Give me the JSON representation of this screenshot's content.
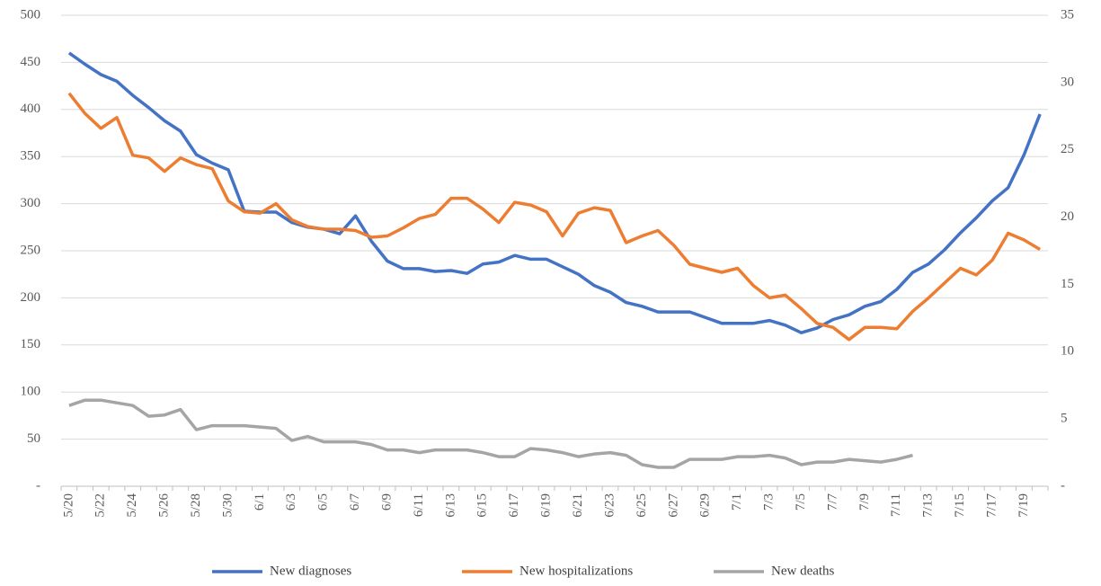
{
  "chart_data": {
    "type": "line",
    "categories": [
      "5/20",
      null,
      "5/22",
      null,
      "5/24",
      null,
      "5/26",
      null,
      "5/28",
      null,
      "5/30",
      null,
      "6/1",
      null,
      "6/3",
      null,
      "6/5",
      null,
      "6/7",
      null,
      "6/9",
      null,
      "6/11",
      null,
      "6/13",
      null,
      "6/15",
      null,
      "6/17",
      null,
      "6/19",
      null,
      "6/21",
      null,
      "6/23",
      null,
      "6/25",
      null,
      "6/27",
      null,
      "6/29",
      null,
      "7/1",
      null,
      "7/3",
      null,
      "7/5",
      null,
      "7/7",
      null,
      "7/9",
      null,
      "7/11",
      null,
      "7/13",
      null,
      "7/15",
      null,
      "7/17",
      null,
      "7/19",
      null
    ],
    "series": [
      {
        "name": "New diagnoses",
        "color": "#4472c4",
        "values": [
          460,
          448,
          437,
          430,
          415,
          402,
          388,
          377,
          352,
          343,
          336,
          292,
          291,
          291,
          280,
          275,
          273,
          268,
          287,
          260,
          239,
          231,
          231,
          228,
          229,
          226,
          236,
          238,
          245,
          241,
          241,
          233,
          225,
          213,
          206,
          195,
          191,
          185,
          185,
          185,
          179,
          173,
          173,
          173,
          176,
          171,
          163,
          168,
          177,
          182,
          191,
          196,
          209,
          227,
          236,
          251,
          269,
          285,
          303,
          317,
          352,
          395
        ]
      },
      {
        "name": "New hospitalizations",
        "color": "#ed7d31",
        "axis": "y2",
        "values": [
          29.2,
          27.7,
          26.6,
          27.4,
          24.6,
          24.4,
          23.4,
          24.4,
          23.9,
          23.6,
          21.2,
          20.4,
          20.3,
          21.0,
          19.8,
          19.3,
          19.1,
          19.1,
          19.0,
          18.5,
          18.6,
          19.2,
          19.9,
          20.2,
          21.4,
          21.4,
          20.6,
          19.6,
          21.1,
          20.9,
          20.4,
          18.6,
          20.3,
          20.7,
          20.5,
          18.1,
          18.6,
          19.0,
          17.9,
          16.5,
          16.2,
          15.9,
          16.2,
          14.9,
          14.0,
          14.2,
          13.2,
          12.1,
          11.8,
          10.9,
          11.8,
          11.8,
          11.7,
          13.0,
          14.0,
          15.1,
          16.2,
          15.7,
          16.8,
          18.8,
          18.3,
          17.6
        ]
      },
      {
        "name": "New deaths",
        "color": "#a5a5a5",
        "axis": "y2",
        "values": [
          6.0,
          6.4,
          6.4,
          6.2,
          6.0,
          5.2,
          5.3,
          5.7,
          4.2,
          4.5,
          4.5,
          4.5,
          4.4,
          4.3,
          3.4,
          3.7,
          3.3,
          3.3,
          3.3,
          3.1,
          2.7,
          2.7,
          2.5,
          2.7,
          2.7,
          2.7,
          2.5,
          2.2,
          2.2,
          2.8,
          2.7,
          2.5,
          2.2,
          2.4,
          2.5,
          2.3,
          1.6,
          1.4,
          1.4,
          2.0,
          2.0,
          2.0,
          2.2,
          2.2,
          2.3,
          2.1,
          1.6,
          1.8,
          1.8,
          2.0,
          1.9,
          1.8,
          2.0,
          2.3,
          null,
          null,
          null,
          null,
          null,
          null,
          null,
          null
        ]
      }
    ],
    "ylim": [
      0,
      500
    ],
    "yticks": [
      {
        "value": 0,
        "label": "-"
      },
      50,
      100,
      150,
      200,
      250,
      300,
      350,
      400,
      450,
      500
    ],
    "y2lim": [
      0,
      35
    ],
    "y2ticks": [
      {
        "value": 0,
        "label": "-"
      },
      5,
      10,
      15,
      20,
      25,
      30,
      35
    ],
    "grid": true,
    "legend": "bottom"
  }
}
